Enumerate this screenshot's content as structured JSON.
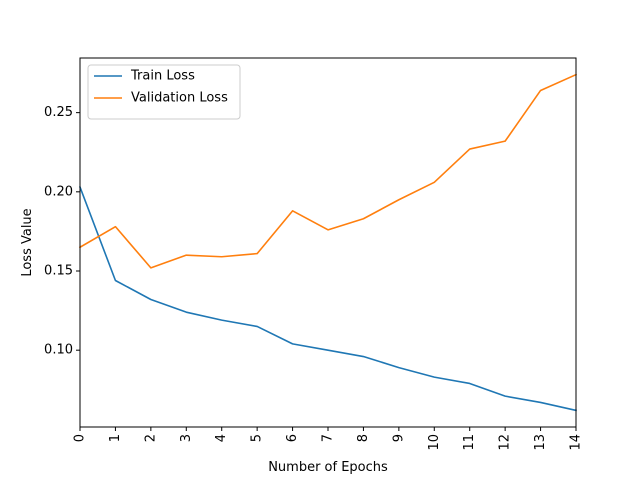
{
  "chart_data": {
    "type": "line",
    "title": "",
    "xlabel": "Number of Epochs",
    "ylabel": "Loss Value",
    "x": [
      0,
      1,
      2,
      3,
      4,
      5,
      6,
      7,
      8,
      9,
      10,
      11,
      12,
      13,
      14
    ],
    "xlim": [
      0,
      14
    ],
    "ylim": [
      0.0515,
      0.2845
    ],
    "yticks": [
      0.1,
      0.15,
      0.2,
      0.25
    ],
    "ytick_labels": [
      "0.10",
      "0.15",
      "0.20",
      "0.25"
    ],
    "xtick_labels": [
      "0",
      "1",
      "2",
      "3",
      "4",
      "5",
      "6",
      "7",
      "8",
      "9",
      "10",
      "11",
      "12",
      "13",
      "14"
    ],
    "grid": false,
    "legend": "top-left",
    "series": [
      {
        "name": "Train Loss",
        "color": "#1f77b4",
        "values": [
          0.203,
          0.144,
          0.132,
          0.124,
          0.119,
          0.115,
          0.104,
          0.1,
          0.096,
          0.089,
          0.083,
          0.079,
          0.071,
          0.067,
          0.062
        ]
      },
      {
        "name": "Validation Loss",
        "color": "#ff7f0e",
        "values": [
          0.165,
          0.178,
          0.152,
          0.16,
          0.159,
          0.161,
          0.188,
          0.176,
          0.183,
          0.195,
          0.206,
          0.227,
          0.232,
          0.264,
          0.274
        ]
      }
    ]
  }
}
